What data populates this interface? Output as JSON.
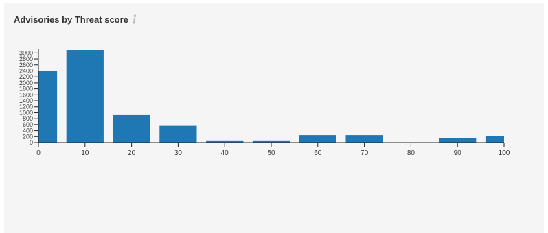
{
  "panel": {
    "title": "Advisories by Threat score",
    "info_icon": "info-icon",
    "info_icon_color": "#bdbdbd"
  },
  "colors": {
    "bar": "#1f77b4",
    "axis": "#222222",
    "panel_background": "#f5f5f5"
  },
  "chart_data": {
    "type": "bar",
    "title": "",
    "xlabel": "",
    "ylabel": "",
    "bins": [
      {
        "x0": 0,
        "x1": 4,
        "value": 2400
      },
      {
        "x0": 6,
        "x1": 14,
        "value": 3100
      },
      {
        "x0": 16,
        "x1": 24,
        "value": 920
      },
      {
        "x0": 26,
        "x1": 34,
        "value": 560
      },
      {
        "x0": 36,
        "x1": 44,
        "value": 50
      },
      {
        "x0": 46,
        "x1": 54,
        "value": 50
      },
      {
        "x0": 56,
        "x1": 64,
        "value": 250
      },
      {
        "x0": 66,
        "x1": 74,
        "value": 250
      },
      {
        "x0": 76,
        "x1": 84,
        "value": 0
      },
      {
        "x0": 86,
        "x1": 94,
        "value": 140
      },
      {
        "x0": 96,
        "x1": 100,
        "value": 220
      }
    ],
    "xlim": [
      0,
      100
    ],
    "ylim": [
      0,
      3100
    ],
    "x_ticks": [
      0,
      10,
      20,
      30,
      40,
      50,
      60,
      70,
      80,
      90,
      100
    ],
    "y_ticks": [
      0,
      200,
      400,
      600,
      800,
      1000,
      1200,
      1400,
      1600,
      1800,
      2000,
      2200,
      2400,
      2600,
      2800,
      3000
    ],
    "grid": false,
    "legend": "none"
  }
}
